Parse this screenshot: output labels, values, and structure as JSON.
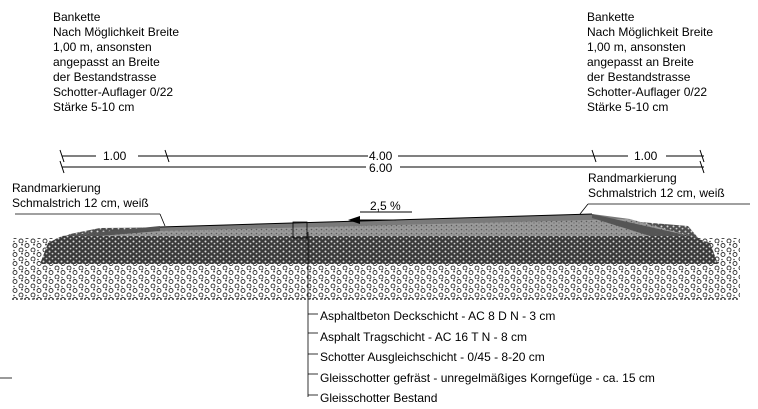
{
  "bankette_left": {
    "lines": [
      "Bankette",
      "Nach Möglichkeit Breite",
      "1,00 m, ansonsten",
      "angepasst an Breite",
      "der Bestandstrasse",
      "Schotter-Auflager 0/22",
      "Stärke 5-10 cm"
    ]
  },
  "bankette_right": {
    "lines": [
      "Bankette",
      "Nach Möglichkeit Breite",
      "1,00 m, ansonsten",
      "angepasst an Breite",
      "der Bestandstrasse",
      "Schotter-Auflager 0/22",
      "Stärke 5-10 cm"
    ]
  },
  "dimensions": {
    "left_shoulder": "1.00",
    "carriageway": "4.00",
    "right_shoulder": "1.00",
    "total": "6.00"
  },
  "marking_left": {
    "line1": "Randmarkierung",
    "line2": "Schmalstrich 12 cm, weiß"
  },
  "marking_right": {
    "line1": "Randmarkierung",
    "line2": "Schmalstrich 12 cm, weiß"
  },
  "slope": "2,5 %",
  "layers": [
    "Asphaltbeton Deckschicht - AC 8 D N - 3 cm",
    "Asphalt Tragschicht - AC 16 T N - 8 cm",
    "Schotter Ausgleichschicht - 0/45 - 8-20 cm",
    "Gleisschotter gefräst - unregelmäßiges Korngefüge - ca. 15 cm",
    "Gleisschotter Bestand"
  ]
}
